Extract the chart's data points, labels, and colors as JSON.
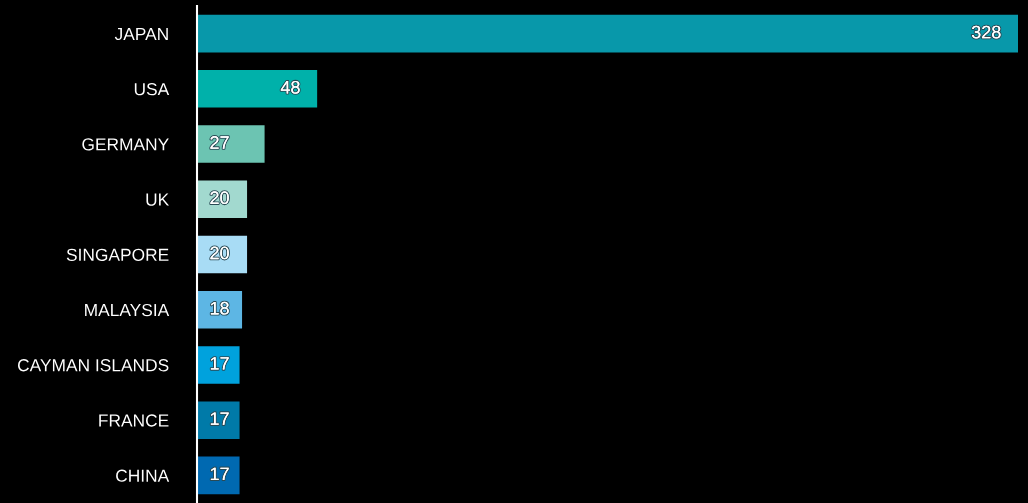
{
  "chart_data": {
    "type": "bar",
    "orientation": "horizontal",
    "data_labels": true,
    "grid": false,
    "legend": false,
    "categories": [
      "JAPAN",
      "USA",
      "GERMANY",
      "UK",
      "SINGAPORE",
      "MALAYSIA",
      "CAYMAN ISLANDS",
      "FRANCE",
      "CHINA"
    ],
    "values": [
      328,
      48,
      27,
      20,
      20,
      18,
      17,
      17,
      17
    ],
    "colors": [
      "#0898aa",
      "#00b1aa",
      "#6cc4b2",
      "#a2d9cf",
      "#a8dcf5",
      "#5db6e4",
      "#00a2dd",
      "#007aa8",
      "#0069b1"
    ]
  }
}
